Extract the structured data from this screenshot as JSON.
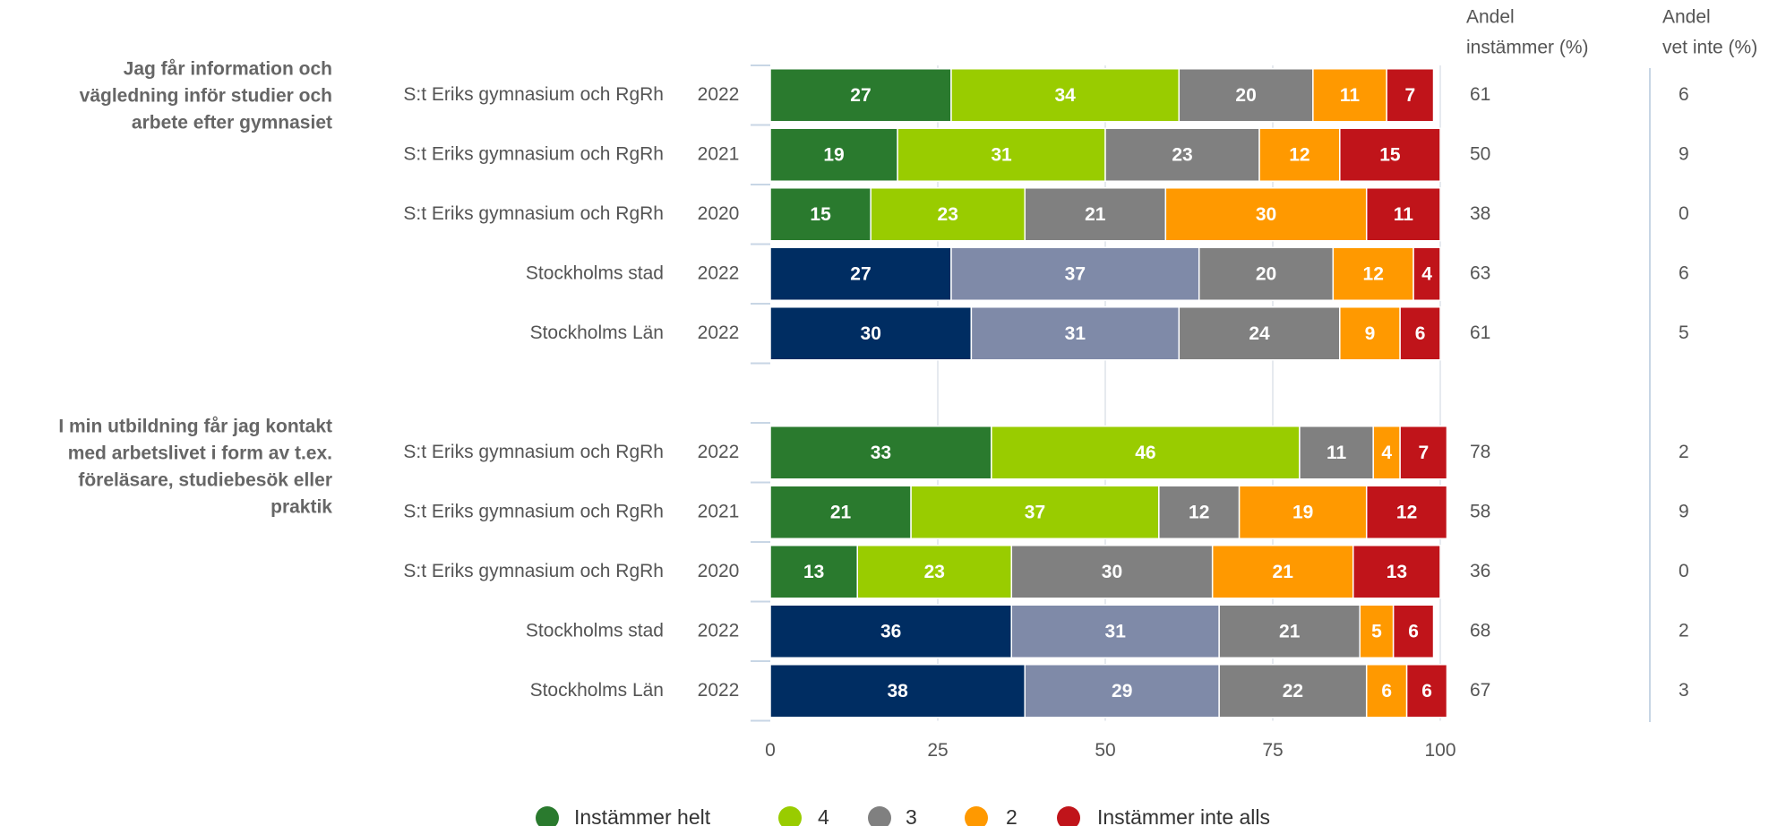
{
  "chart_data": {
    "type": "stacked_bar_h",
    "xlim": [
      0,
      100
    ],
    "xticks": [
      0,
      25,
      50,
      75,
      100
    ],
    "grid": true,
    "headers": {
      "agree": [
        "Andel",
        "instämmer (%)"
      ],
      "dont_know": [
        "Andel",
        "vet inte (%)"
      ]
    },
    "series": [
      {
        "name": "Instämmer helt",
        "color": "#2a7a2e"
      },
      {
        "name": "4",
        "color": "#99cc00"
      },
      {
        "name": "3",
        "color": "#808080"
      },
      {
        "name": "2",
        "color": "#ff9900"
      },
      {
        "name": "Instämmer inte alls",
        "color": "#c0141a"
      }
    ],
    "groups": [
      {
        "question": [
          "Jag får information och",
          "vägledning inför studier och",
          "arbete efter gymnasiet"
        ],
        "rows": [
          {
            "name": "S:t Eriks gymnasium och RgRh",
            "year": 2022,
            "values": [
              27,
              34,
              20,
              11,
              7
            ],
            "agree": 61,
            "dont_know": 6,
            "colors": [
              "#2a7a2e",
              "#99cc00",
              "#808080",
              "#ff9900",
              "#c0141a"
            ]
          },
          {
            "name": "S:t Eriks gymnasium och RgRh",
            "year": 2021,
            "values": [
              19,
              31,
              23,
              12,
              15
            ],
            "agree": 50,
            "dont_know": 9,
            "colors": [
              "#2a7a2e",
              "#99cc00",
              "#808080",
              "#ff9900",
              "#c0141a"
            ]
          },
          {
            "name": "S:t Eriks gymnasium och RgRh",
            "year": 2020,
            "values": [
              15,
              23,
              21,
              30,
              11
            ],
            "agree": 38,
            "dont_know": 0,
            "colors": [
              "#2a7a2e",
              "#99cc00",
              "#808080",
              "#ff9900",
              "#c0141a"
            ]
          },
          {
            "name": "Stockholms stad",
            "year": 2022,
            "values": [
              27,
              37,
              20,
              12,
              4
            ],
            "agree": 63,
            "dont_know": 6,
            "colors": [
              "#002d62",
              "#7f8aa8",
              "#808080",
              "#ff9900",
              "#c0141a"
            ]
          },
          {
            "name": "Stockholms Län",
            "year": 2022,
            "values": [
              30,
              31,
              24,
              9,
              6
            ],
            "agree": 61,
            "dont_know": 5,
            "colors": [
              "#002d62",
              "#7f8aa8",
              "#808080",
              "#ff9900",
              "#c0141a"
            ]
          }
        ]
      },
      {
        "question": [
          "I min utbildning får jag kontakt",
          "med arbetslivet i form av t.ex.",
          "föreläsare, studiebesök eller",
          "praktik"
        ],
        "rows": [
          {
            "name": "S:t Eriks gymnasium och RgRh",
            "year": 2022,
            "values": [
              33,
              46,
              11,
              4,
              7
            ],
            "agree": 78,
            "dont_know": 2,
            "colors": [
              "#2a7a2e",
              "#99cc00",
              "#808080",
              "#ff9900",
              "#c0141a"
            ]
          },
          {
            "name": "S:t Eriks gymnasium och RgRh",
            "year": 2021,
            "values": [
              21,
              37,
              12,
              19,
              12
            ],
            "agree": 58,
            "dont_know": 9,
            "colors": [
              "#2a7a2e",
              "#99cc00",
              "#808080",
              "#ff9900",
              "#c0141a"
            ]
          },
          {
            "name": "S:t Eriks gymnasium och RgRh",
            "year": 2020,
            "values": [
              13,
              23,
              30,
              21,
              13
            ],
            "agree": 36,
            "dont_know": 0,
            "colors": [
              "#2a7a2e",
              "#99cc00",
              "#808080",
              "#ff9900",
              "#c0141a"
            ]
          },
          {
            "name": "Stockholms stad",
            "year": 2022,
            "values": [
              36,
              31,
              21,
              5,
              6
            ],
            "agree": 68,
            "dont_know": 2,
            "colors": [
              "#002d62",
              "#7f8aa8",
              "#808080",
              "#ff9900",
              "#c0141a"
            ]
          },
          {
            "name": "Stockholms Län",
            "year": 2022,
            "values": [
              38,
              29,
              22,
              6,
              6
            ],
            "agree": 67,
            "dont_know": 3,
            "colors": [
              "#002d62",
              "#7f8aa8",
              "#808080",
              "#ff9900",
              "#c0141a"
            ]
          }
        ]
      }
    ]
  }
}
